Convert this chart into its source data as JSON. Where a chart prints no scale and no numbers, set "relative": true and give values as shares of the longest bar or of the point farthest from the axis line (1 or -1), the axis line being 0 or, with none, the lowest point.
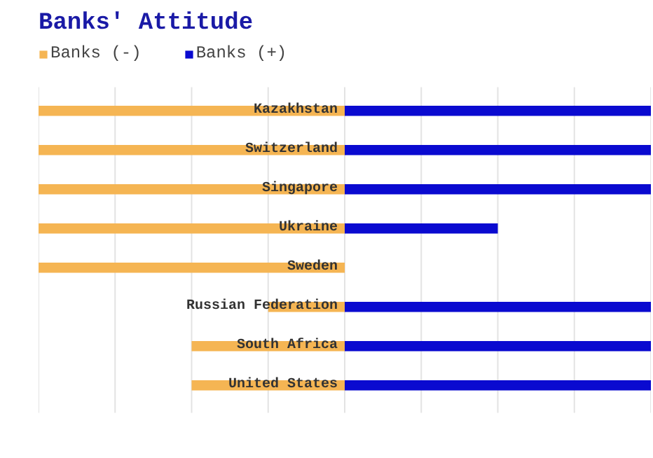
{
  "chart_data": {
    "type": "bar",
    "orientation": "horizontal",
    "relative": true,
    "stacked": true,
    "title": "Banks' Attitude",
    "categories": [
      "Kazakhstan",
      "Switzerland",
      "Singapore",
      "Ukraine",
      "Sweden",
      "Russian Federation",
      "South Africa",
      "United States"
    ],
    "series": [
      {
        "name": "Banks (-)",
        "color": "#f5b553",
        "values": [
          -1,
          -1,
          -1,
          -1,
          -1,
          -0.25,
          -0.5,
          -0.5
        ]
      },
      {
        "name": "Banks (+)",
        "color": "#0a0ad0",
        "values": [
          1,
          1,
          1,
          0.5,
          0,
          1,
          1,
          1
        ]
      }
    ],
    "grid": "x",
    "legend": "top left"
  }
}
